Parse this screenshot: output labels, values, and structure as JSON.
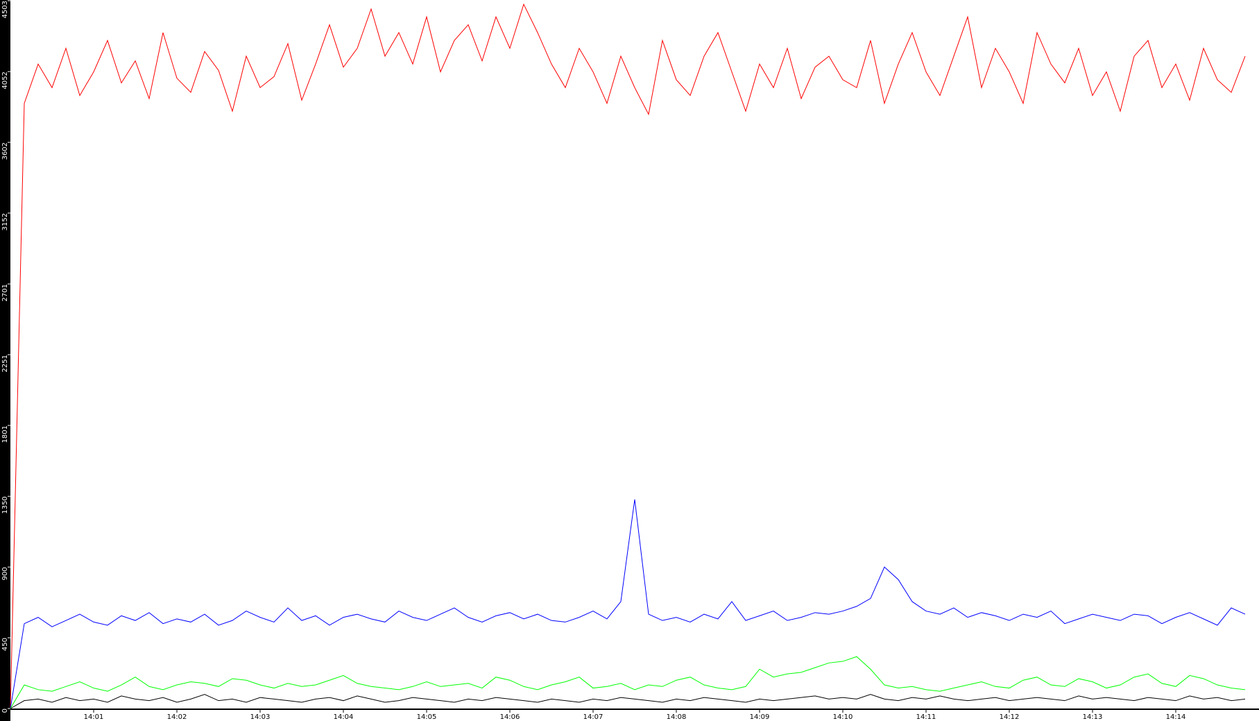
{
  "chart_data": {
    "type": "line",
    "categories": [
      null,
      null,
      null,
      null,
      null,
      null,
      "14:01",
      null,
      null,
      null,
      null,
      null,
      "14:02",
      null,
      null,
      null,
      null,
      null,
      "14:03",
      null,
      null,
      null,
      null,
      null,
      "14:04",
      null,
      null,
      null,
      null,
      null,
      "14:05",
      null,
      null,
      null,
      null,
      null,
      "14:06",
      null,
      null,
      null,
      null,
      null,
      "14:07",
      null,
      null,
      null,
      null,
      null,
      "14:08",
      null,
      null,
      null,
      null,
      null,
      "14:09",
      null,
      null,
      null,
      null,
      null,
      "14:10",
      null,
      null,
      null,
      null,
      null,
      "14:11",
      null,
      null,
      null,
      null,
      null,
      "14:12",
      null,
      null,
      null,
      null,
      null,
      "14:13",
      null,
      null,
      null,
      null,
      null,
      "14:14",
      null,
      null,
      null,
      null,
      null
    ],
    "series": [
      {
        "color": "#ff0000",
        "values": [
          0,
          3850,
          4100,
          3950,
          4200,
          3900,
          4050,
          4250,
          3980,
          4120,
          3880,
          4300,
          4010,
          3920,
          4180,
          4060,
          3800,
          4150,
          3950,
          4020,
          4230,
          3870,
          4100,
          4350,
          4080,
          4200,
          4450,
          4150,
          4300,
          4100,
          4400,
          4050,
          4250,
          4350,
          4120,
          4400,
          4200,
          4480,
          4300,
          4100,
          3950,
          4200,
          4050,
          3850,
          4150,
          3950,
          3780,
          4250,
          4000,
          3900,
          4150,
          4300,
          4050,
          3800,
          4100,
          3950,
          4200,
          3880,
          4080,
          4150,
          4000,
          3950,
          4250,
          3850,
          4100,
          4300,
          4050,
          3900,
          4150,
          4400,
          3950,
          4200,
          4050,
          3850,
          4300,
          4100,
          3980,
          4200,
          3900,
          4050,
          3800,
          4150,
          4250,
          3950,
          4100,
          3870,
          4200,
          4000,
          3920,
          4150
        ]
      },
      {
        "color": "#0000ff",
        "values": [
          0,
          540,
          580,
          520,
          560,
          600,
          550,
          530,
          590,
          560,
          610,
          540,
          570,
          550,
          600,
          530,
          560,
          620,
          580,
          550,
          640,
          560,
          590,
          530,
          580,
          600,
          570,
          550,
          620,
          580,
          560,
          600,
          640,
          580,
          550,
          590,
          610,
          570,
          600,
          560,
          550,
          580,
          620,
          570,
          680,
          1330,
          600,
          560,
          580,
          550,
          600,
          570,
          680,
          560,
          590,
          620,
          560,
          580,
          610,
          600,
          620,
          650,
          700,
          900,
          820,
          680,
          620,
          600,
          640,
          580,
          610,
          590,
          560,
          600,
          580,
          620,
          540,
          570,
          600,
          580,
          560,
          600,
          590,
          540,
          580,
          610,
          570,
          530,
          640,
          600
        ]
      },
      {
        "color": "#00ff00",
        "values": [
          0,
          150,
          120,
          110,
          140,
          170,
          130,
          110,
          150,
          200,
          140,
          120,
          150,
          170,
          160,
          140,
          190,
          180,
          150,
          130,
          160,
          140,
          150,
          180,
          210,
          160,
          140,
          130,
          120,
          140,
          170,
          140,
          150,
          160,
          130,
          200,
          180,
          140,
          120,
          150,
          170,
          200,
          130,
          140,
          160,
          120,
          150,
          140,
          180,
          200,
          150,
          130,
          120,
          140,
          250,
          200,
          220,
          230,
          260,
          290,
          300,
          330,
          250,
          150,
          130,
          140,
          120,
          110,
          130,
          150,
          170,
          140,
          130,
          180,
          200,
          150,
          140,
          190,
          170,
          130,
          150,
          200,
          220,
          160,
          140,
          210,
          190,
          150,
          130,
          120
        ]
      },
      {
        "color": "#000000",
        "values": [
          0,
          50,
          60,
          40,
          70,
          50,
          60,
          40,
          80,
          60,
          50,
          70,
          40,
          60,
          90,
          50,
          60,
          40,
          70,
          60,
          50,
          40,
          60,
          70,
          50,
          80,
          60,
          40,
          50,
          70,
          60,
          50,
          40,
          60,
          50,
          70,
          60,
          50,
          40,
          60,
          50,
          40,
          60,
          50,
          70,
          60,
          50,
          40,
          60,
          50,
          70,
          60,
          50,
          40,
          60,
          50,
          60,
          70,
          80,
          60,
          70,
          60,
          90,
          60,
          50,
          70,
          60,
          80,
          60,
          50,
          60,
          70,
          50,
          60,
          70,
          60,
          50,
          80,
          60,
          70,
          60,
          50,
          70,
          60,
          50,
          80,
          60,
          70,
          50,
          60
        ]
      }
    ],
    "ylim": [
      0,
      4503
    ],
    "yticks": [
      0,
      450,
      900,
      1350,
      1801,
      2251,
      2701,
      3152,
      3602,
      4052,
      4503
    ]
  }
}
